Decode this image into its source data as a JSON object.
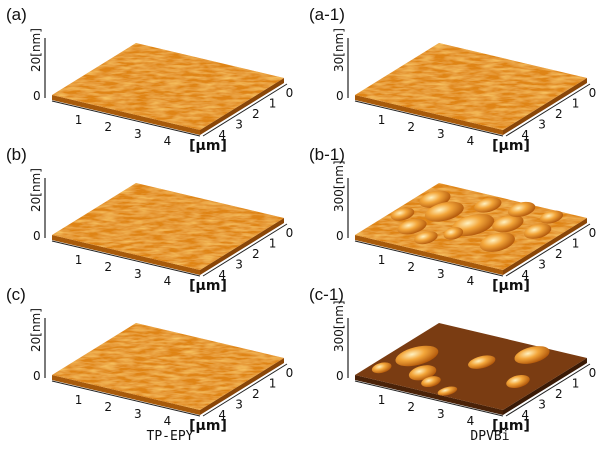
{
  "panels": [
    {
      "label": "(a)",
      "z_label": "20[nm]",
      "z_zero": "0",
      "x_ticks": [
        "1",
        "2",
        "3",
        "4"
      ],
      "y_ticks": [
        "0",
        "1",
        "2",
        "3",
        "4"
      ],
      "unit": "[μm]"
    },
    {
      "label": "(a-1)",
      "z_label": "30[nm]",
      "z_zero": "0",
      "x_ticks": [
        "1",
        "2",
        "3",
        "4"
      ],
      "y_ticks": [
        "0",
        "1",
        "2",
        "3",
        "4"
      ],
      "unit": "[μm]"
    },
    {
      "label": "(b)",
      "z_label": "20[nm]",
      "z_zero": "0",
      "x_ticks": [
        "1",
        "2",
        "3",
        "4"
      ],
      "y_ticks": [
        "0",
        "1",
        "2",
        "3",
        "4"
      ],
      "unit": "[μm]"
    },
    {
      "label": "(b-1)",
      "z_label": "300[nm]",
      "z_zero": "0",
      "x_ticks": [
        "1",
        "2",
        "3",
        "4"
      ],
      "y_ticks": [
        "0",
        "1",
        "2",
        "3",
        "4"
      ],
      "unit": "[μm]"
    },
    {
      "label": "(c)",
      "z_label": "20[nm]",
      "z_zero": "0",
      "x_ticks": [
        "1",
        "2",
        "3",
        "4"
      ],
      "y_ticks": [
        "0",
        "1",
        "2",
        "3",
        "4"
      ],
      "unit": "[μm]"
    },
    {
      "label": "(c-1)",
      "z_label": "300[nm]",
      "z_zero": "0",
      "x_ticks": [
        "1",
        "2",
        "3",
        "4"
      ],
      "y_ticks": [
        "0",
        "1",
        "2",
        "3",
        "4"
      ],
      "unit": "[μm]"
    }
  ],
  "columns": [
    "TP-EPY",
    "DPVBi"
  ]
}
